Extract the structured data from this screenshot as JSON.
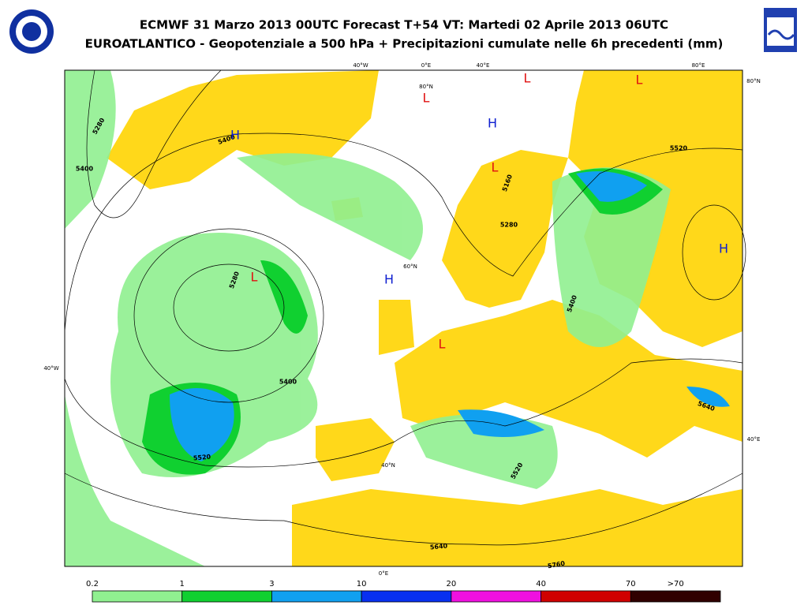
{
  "header": {
    "title": "ECMWF 31 Marzo 2013 00UTC Forecast T+54 VT: Martedi 02 Aprile 2013 06UTC",
    "subtitle": "EUROATLANTICO - Geopotenziale a 500 hPa + Precipitazioni cumulate nelle 6h precedenti (mm)"
  },
  "map": {
    "grid_labels": [
      "40°W",
      "0°E",
      "40°E",
      "80°E",
      "80°N",
      "40°W",
      "40°E",
      "0°E",
      "80°N",
      "60°N",
      "40°N"
    ],
    "contour_labels": [
      "5280",
      "5400",
      "5400",
      "5160",
      "5280",
      "5280",
      "5400",
      "5520",
      "5520",
      "5400",
      "5640",
      "5520",
      "5640",
      "5760"
    ],
    "centers": [
      {
        "label": "L",
        "color": "#e01010"
      },
      {
        "label": "L",
        "color": "#e01010"
      },
      {
        "label": "L",
        "color": "#e01010"
      },
      {
        "label": "L",
        "color": "#e01010"
      },
      {
        "label": "L",
        "color": "#e01010"
      },
      {
        "label": "L",
        "color": "#e01010"
      },
      {
        "label": "H",
        "color": "#1020d0"
      },
      {
        "label": "H",
        "color": "#1020d0"
      },
      {
        "label": "H",
        "color": "#1020d0"
      },
      {
        "label": "H",
        "color": "#1020d0"
      }
    ]
  },
  "legend": {
    "labels": [
      "0.2",
      "1",
      "3",
      "10",
      "20",
      "40",
      "70",
      ">70"
    ],
    "colors": [
      "#90f090",
      "#10d030",
      "#10a0f0",
      "#0830f0",
      "#f010e0",
      "#d00000",
      "#300000"
    ]
  }
}
